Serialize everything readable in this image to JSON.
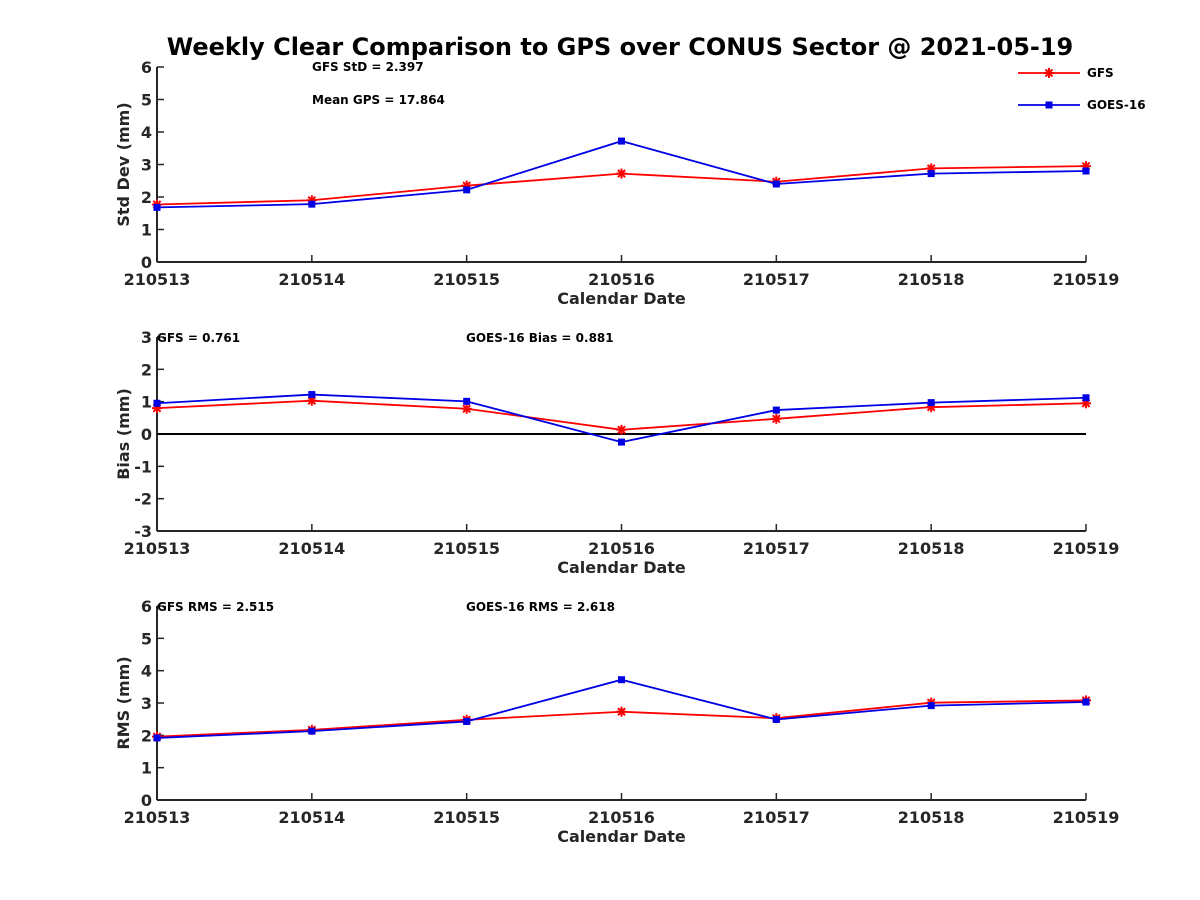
{
  "figure_title": "Weekly Clear Comparison to GPS over CONUS Sector @ 2021-05-19",
  "colors": {
    "GFS": "#ff0000",
    "GOES-16": "#0000e6",
    "axis": "#262626",
    "zero_line": "#000000"
  },
  "legend": [
    {
      "name": "GFS",
      "marker": "asterisk"
    },
    {
      "name": "GOES-16",
      "marker": "square"
    }
  ],
  "chart_data": [
    {
      "type": "line",
      "title": "",
      "xlabel": "Calendar Date",
      "ylabel": "Std Dev (mm)",
      "categories": [
        "210513",
        "210514",
        "210515",
        "210516",
        "210517",
        "210518",
        "210519"
      ],
      "ylim": [
        0,
        6
      ],
      "yticks": [
        "0",
        "1",
        "2",
        "3",
        "4",
        "5",
        "6"
      ],
      "annotations": [
        "GFS StD = 2.397",
        "Mean GPS = 17.864"
      ],
      "zero_line": false,
      "show_legend": true,
      "legend_position": "top-right",
      "series": [
        {
          "name": "GFS",
          "values": [
            1.77,
            1.9,
            2.35,
            2.72,
            2.47,
            2.88,
            2.95
          ]
        },
        {
          "name": "GOES-16",
          "values": [
            1.68,
            1.78,
            2.22,
            3.72,
            2.4,
            2.72,
            2.8
          ]
        }
      ]
    },
    {
      "type": "line",
      "title": "",
      "xlabel": "Calendar Date",
      "ylabel": "Bias (mm)",
      "categories": [
        "210513",
        "210514",
        "210515",
        "210516",
        "210517",
        "210518",
        "210519"
      ],
      "ylim": [
        -3,
        3
      ],
      "yticks": [
        "-3",
        "-2",
        "-1",
        "0",
        "1",
        "2",
        "3"
      ],
      "annotations": [
        "GFS = 0.761",
        "GOES-16 Bias  = 0.881"
      ],
      "zero_line": true,
      "show_legend": false,
      "series": [
        {
          "name": "GFS",
          "values": [
            0.8,
            1.03,
            0.78,
            0.13,
            0.47,
            0.83,
            0.95
          ]
        },
        {
          "name": "GOES-16",
          "values": [
            0.95,
            1.22,
            1.01,
            -0.25,
            0.74,
            0.97,
            1.12
          ]
        }
      ]
    },
    {
      "type": "line",
      "title": "",
      "xlabel": "Calendar Date",
      "ylabel": "RMS (mm)",
      "categories": [
        "210513",
        "210514",
        "210515",
        "210516",
        "210517",
        "210518",
        "210519"
      ],
      "ylim": [
        0,
        6
      ],
      "yticks": [
        "0",
        "1",
        "2",
        "3",
        "4",
        "5",
        "6"
      ],
      "annotations": [
        "GFS RMS = 2.515",
        "GOES-16 RMS = 2.618"
      ],
      "zero_line": false,
      "show_legend": false,
      "series": [
        {
          "name": "GFS",
          "values": [
            1.96,
            2.17,
            2.48,
            2.73,
            2.53,
            3.01,
            3.08
          ]
        },
        {
          "name": "GOES-16",
          "values": [
            1.92,
            2.13,
            2.43,
            3.72,
            2.49,
            2.92,
            3.03
          ]
        }
      ]
    }
  ]
}
